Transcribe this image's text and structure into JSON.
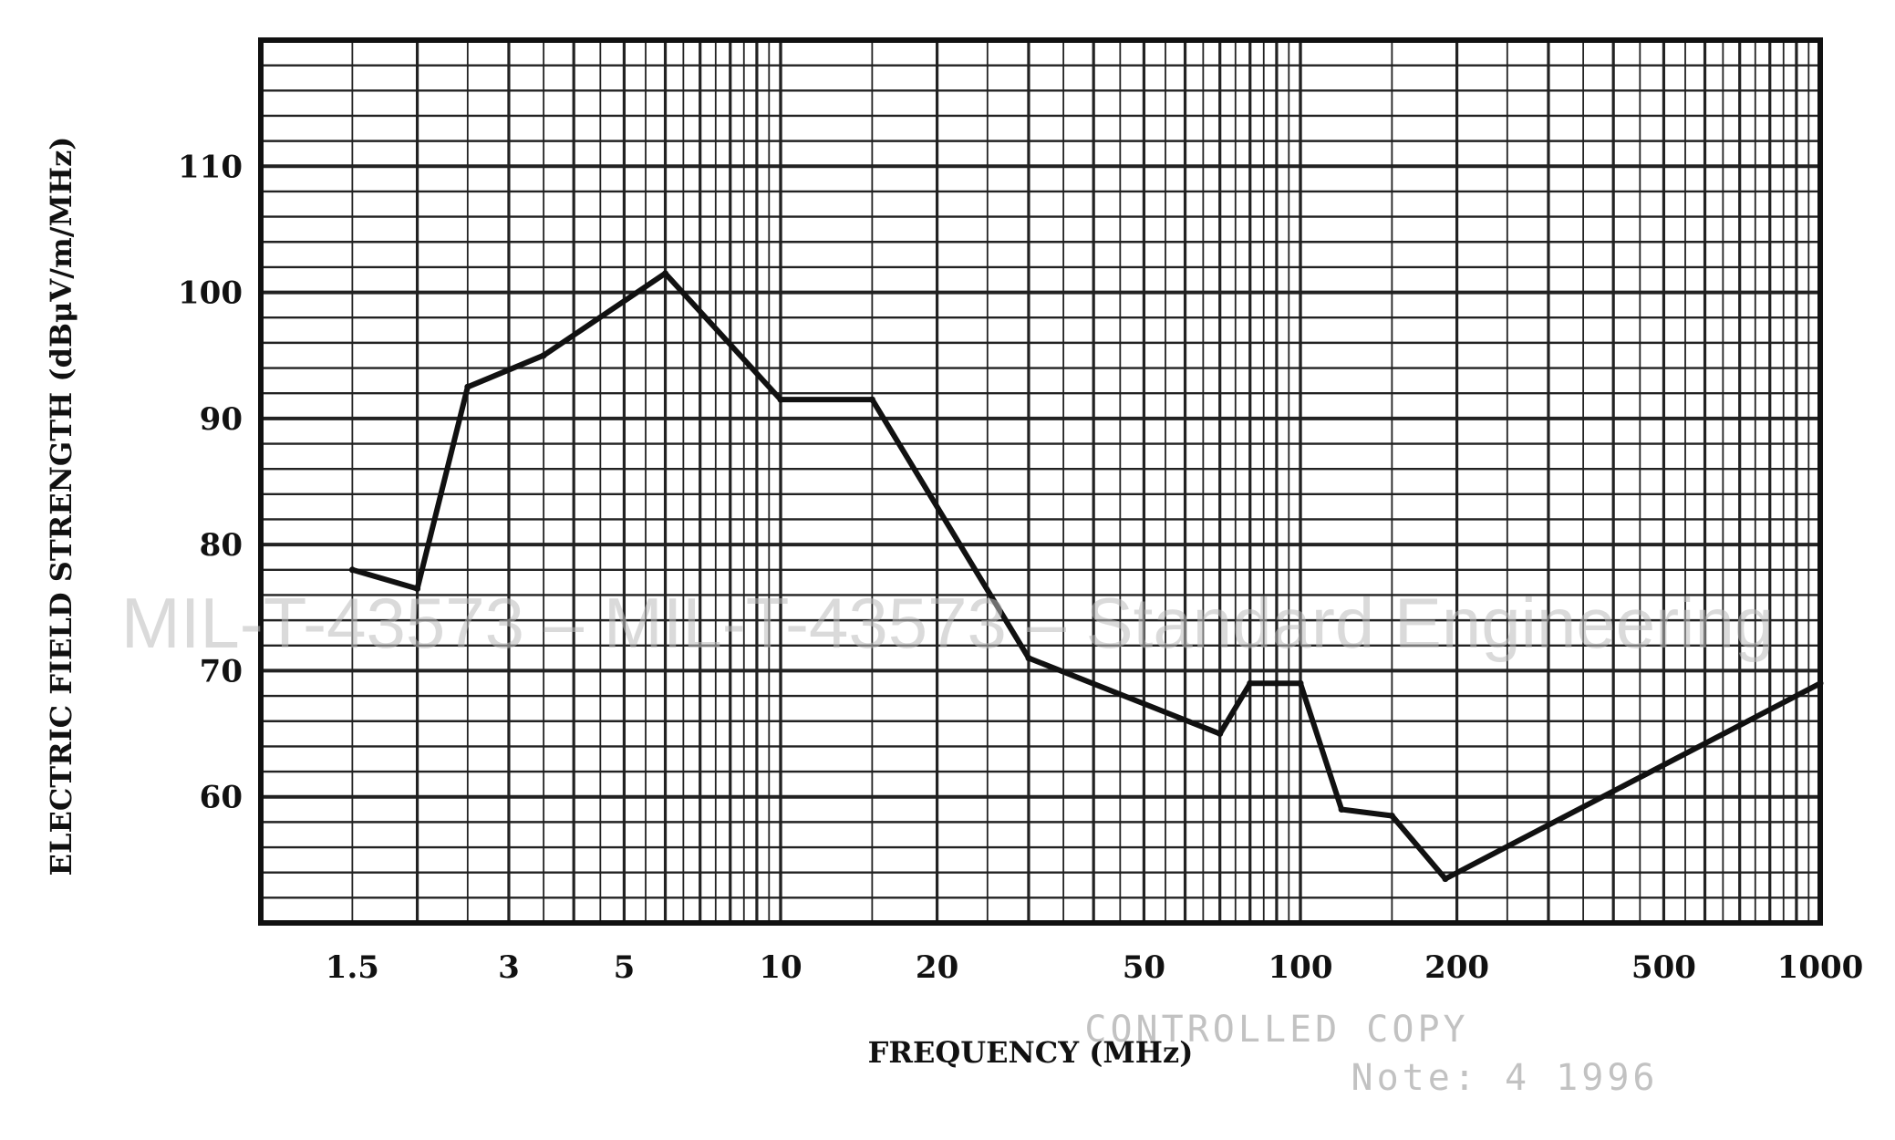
{
  "chart_data": {
    "type": "line",
    "xlabel": "FREQUENCY (MHz)",
    "ylabel": "ELECTRIC FIELD STRENGTH (dBμV/m/MHz)",
    "x_scale": "log",
    "xlim": [
      1.0,
      1000
    ],
    "ylim": [
      50,
      120
    ],
    "x_ticks": [
      1.5,
      3,
      5,
      10,
      20,
      50,
      100,
      200,
      500,
      1000
    ],
    "x_tick_labels": [
      "1.5",
      "3",
      "5",
      "10",
      "20",
      "50",
      "100",
      "200",
      "500",
      "1000"
    ],
    "y_ticks": [
      60,
      70,
      80,
      90,
      100,
      110
    ],
    "y_tick_labels": [
      "60",
      "70",
      "80",
      "90",
      "100",
      "110"
    ],
    "grid": true,
    "line_color": "#111111",
    "series": [
      {
        "x": [
          1.5,
          2,
          2.5,
          3.5,
          6,
          10,
          15,
          30,
          70,
          80,
          90,
          100,
          120,
          150,
          190,
          1000
        ],
        "y": [
          78,
          76.5,
          92.5,
          95,
          101.5,
          91.5,
          91.5,
          71,
          65,
          69,
          69,
          69,
          59,
          58.5,
          53.5,
          69
        ]
      }
    ]
  },
  "watermark": "MIL-T-43573 – MIL-T-43573 – Standard Engineering",
  "stamp_lines": [
    "CONTROLLED COPY",
    "Note: 4 1996"
  ]
}
